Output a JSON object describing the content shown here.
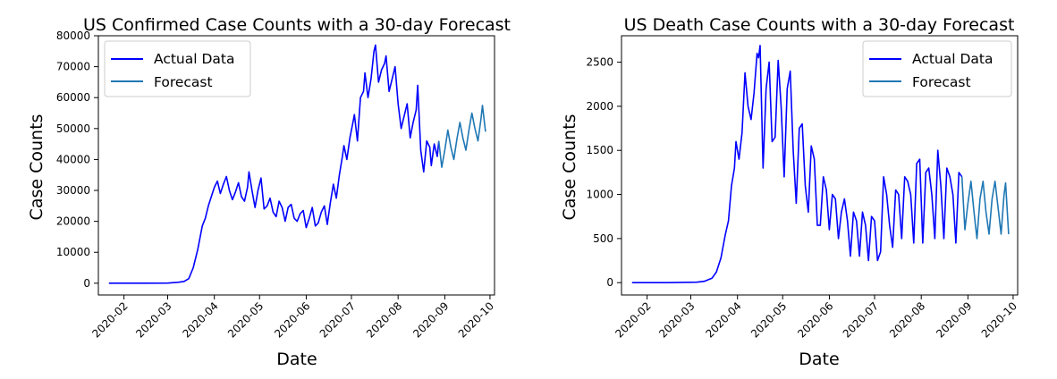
{
  "chart_data": [
    {
      "type": "line",
      "title": "US Confirmed Case Counts with a 30-day Forecast",
      "xlabel": "Date",
      "ylabel": "Case Counts",
      "xlim": [
        "2020-01-15",
        "2020-10-04"
      ],
      "ylim": [
        -3800,
        80000
      ],
      "yticks": [
        0,
        10000,
        20000,
        30000,
        40000,
        50000,
        60000,
        70000,
        80000
      ],
      "xticks": [
        "2020-02",
        "2020-03",
        "2020-04",
        "2020-05",
        "2020-06",
        "2020-07",
        "2020-08",
        "2020-09",
        "2020-10"
      ],
      "legend": {
        "placement": "upper left",
        "entries": [
          "Actual Data",
          "Forecast"
        ]
      },
      "grid": false,
      "series": [
        {
          "name": "Actual Data",
          "color": "#0000ff",
          "points": [
            [
              "2020-01-22",
              0
            ],
            [
              "2020-02-01",
              0
            ],
            [
              "2020-02-15",
              0
            ],
            [
              "2020-03-01",
              50
            ],
            [
              "2020-03-08",
              300
            ],
            [
              "2020-03-12",
              600
            ],
            [
              "2020-03-15",
              1500
            ],
            [
              "2020-03-18",
              5000
            ],
            [
              "2020-03-21",
              11000
            ],
            [
              "2020-03-24",
              18500
            ],
            [
              "2020-03-26",
              21000
            ],
            [
              "2020-03-28",
              25000
            ],
            [
              "2020-03-30",
              28000
            ],
            [
              "2020-04-01",
              31000
            ],
            [
              "2020-04-03",
              33000
            ],
            [
              "2020-04-05",
              29000
            ],
            [
              "2020-04-07",
              32000
            ],
            [
              "2020-04-09",
              34500
            ],
            [
              "2020-04-11",
              30000
            ],
            [
              "2020-04-13",
              27000
            ],
            [
              "2020-04-15",
              29500
            ],
            [
              "2020-04-17",
              32500
            ],
            [
              "2020-04-19",
              28000
            ],
            [
              "2020-04-21",
              26500
            ],
            [
              "2020-04-23",
              31000
            ],
            [
              "2020-04-24",
              36000
            ],
            [
              "2020-04-26",
              30000
            ],
            [
              "2020-04-28",
              24500
            ],
            [
              "2020-04-30",
              30000
            ],
            [
              "2020-05-02",
              34000
            ],
            [
              "2020-05-04",
              24000
            ],
            [
              "2020-05-06",
              25000
            ],
            [
              "2020-05-08",
              27500
            ],
            [
              "2020-05-10",
              23000
            ],
            [
              "2020-05-12",
              21500
            ],
            [
              "2020-05-14",
              26500
            ],
            [
              "2020-05-16",
              24500
            ],
            [
              "2020-05-18",
              20000
            ],
            [
              "2020-05-20",
              24500
            ],
            [
              "2020-05-22",
              25500
            ],
            [
              "2020-05-24",
              21000
            ],
            [
              "2020-05-26",
              20000
            ],
            [
              "2020-05-28",
              22500
            ],
            [
              "2020-05-30",
              23500
            ],
            [
              "2020-06-01",
              18000
            ],
            [
              "2020-06-03",
              21000
            ],
            [
              "2020-06-05",
              24500
            ],
            [
              "2020-06-07",
              18500
            ],
            [
              "2020-06-09",
              19500
            ],
            [
              "2020-06-11",
              23000
            ],
            [
              "2020-06-13",
              25000
            ],
            [
              "2020-06-15",
              19000
            ],
            [
              "2020-06-17",
              26000
            ],
            [
              "2020-06-19",
              32000
            ],
            [
              "2020-06-21",
              27500
            ],
            [
              "2020-06-23",
              35000
            ],
            [
              "2020-06-25",
              41000
            ],
            [
              "2020-06-26",
              44500
            ],
            [
              "2020-06-28",
              40000
            ],
            [
              "2020-06-30",
              47000
            ],
            [
              "2020-07-02",
              52000
            ],
            [
              "2020-07-03",
              54500
            ],
            [
              "2020-07-05",
              46000
            ],
            [
              "2020-07-07",
              60000
            ],
            [
              "2020-07-09",
              62000
            ],
            [
              "2020-07-10",
              68000
            ],
            [
              "2020-07-12",
              60000
            ],
            [
              "2020-07-14",
              66000
            ],
            [
              "2020-07-16",
              75000
            ],
            [
              "2020-07-17",
              77000
            ],
            [
              "2020-07-19",
              65000
            ],
            [
              "2020-07-21",
              69000
            ],
            [
              "2020-07-23",
              71000
            ],
            [
              "2020-07-24",
              73500
            ],
            [
              "2020-07-26",
              62000
            ],
            [
              "2020-07-28",
              66000
            ],
            [
              "2020-07-30",
              70000
            ],
            [
              "2020-08-01",
              58000
            ],
            [
              "2020-08-03",
              50000
            ],
            [
              "2020-08-05",
              54000
            ],
            [
              "2020-08-07",
              58000
            ],
            [
              "2020-08-09",
              47000
            ],
            [
              "2020-08-11",
              52000
            ],
            [
              "2020-08-13",
              56000
            ],
            [
              "2020-08-14",
              64000
            ],
            [
              "2020-08-16",
              43000
            ],
            [
              "2020-08-18",
              36000
            ],
            [
              "2020-08-20",
              46000
            ],
            [
              "2020-08-22",
              44000
            ],
            [
              "2020-08-23",
              38000
            ],
            [
              "2020-08-25",
              45000
            ],
            [
              "2020-08-27",
              41000
            ],
            [
              "2020-08-28",
              46000
            ]
          ]
        },
        {
          "name": "Forecast",
          "color": "#1f77b4",
          "points": [
            [
              "2020-08-28",
              46000
            ],
            [
              "2020-08-30",
              37500
            ],
            [
              "2020-09-01",
              43000
            ],
            [
              "2020-09-03",
              49500
            ],
            [
              "2020-09-05",
              44000
            ],
            [
              "2020-09-07",
              40000
            ],
            [
              "2020-09-09",
              46500
            ],
            [
              "2020-09-11",
              52000
            ],
            [
              "2020-09-13",
              47000
            ],
            [
              "2020-09-15",
              43000
            ],
            [
              "2020-09-17",
              49500
            ],
            [
              "2020-09-19",
              55000
            ],
            [
              "2020-09-21",
              50000
            ],
            [
              "2020-09-23",
              46000
            ],
            [
              "2020-09-25",
              53000
            ],
            [
              "2020-09-26",
              57500
            ],
            [
              "2020-09-28",
              49000
            ]
          ]
        }
      ]
    },
    {
      "type": "line",
      "title": "US Death Case Counts with a 30-day Forecast",
      "xlabel": "Date",
      "ylabel": "Case Counts",
      "xlim": [
        "2020-01-15",
        "2020-10-04"
      ],
      "ylim": [
        -140,
        2800
      ],
      "yticks": [
        0,
        500,
        1000,
        1500,
        2000,
        2500
      ],
      "xticks": [
        "2020-02",
        "2020-03",
        "2020-04",
        "2020-05",
        "2020-06",
        "2020-07",
        "2020-08",
        "2020-09",
        "2020-10"
      ],
      "legend": {
        "placement": "upper right",
        "entries": [
          "Actual Data",
          "Forecast"
        ]
      },
      "grid": false,
      "series": [
        {
          "name": "Actual Data",
          "color": "#0000ff",
          "points": [
            [
              "2020-01-22",
              0
            ],
            [
              "2020-02-15",
              0
            ],
            [
              "2020-03-05",
              5
            ],
            [
              "2020-03-10",
              15
            ],
            [
              "2020-03-15",
              50
            ],
            [
              "2020-03-18",
              120
            ],
            [
              "2020-03-21",
              280
            ],
            [
              "2020-03-24",
              550
            ],
            [
              "2020-03-26",
              700
            ],
            [
              "2020-03-28",
              1100
            ],
            [
              "2020-03-30",
              1300
            ],
            [
              "2020-03-31",
              1600
            ],
            [
              "2020-04-02",
              1400
            ],
            [
              "2020-04-04",
              1700
            ],
            [
              "2020-04-06",
              2380
            ],
            [
              "2020-04-08",
              2000
            ],
            [
              "2020-04-10",
              1850
            ],
            [
              "2020-04-12",
              2150
            ],
            [
              "2020-04-14",
              2600
            ],
            [
              "2020-04-15",
              2550
            ],
            [
              "2020-04-16",
              2690
            ],
            [
              "2020-04-18",
              1300
            ],
            [
              "2020-04-20",
              2200
            ],
            [
              "2020-04-22",
              2500
            ],
            [
              "2020-04-24",
              1600
            ],
            [
              "2020-04-26",
              1650
            ],
            [
              "2020-04-28",
              2520
            ],
            [
              "2020-04-30",
              2000
            ],
            [
              "2020-05-02",
              1200
            ],
            [
              "2020-05-04",
              2200
            ],
            [
              "2020-05-06",
              2400
            ],
            [
              "2020-05-08",
              1500
            ],
            [
              "2020-05-10",
              900
            ],
            [
              "2020-05-12",
              1750
            ],
            [
              "2020-05-14",
              1800
            ],
            [
              "2020-05-16",
              1100
            ],
            [
              "2020-05-18",
              800
            ],
            [
              "2020-05-20",
              1550
            ],
            [
              "2020-05-22",
              1400
            ],
            [
              "2020-05-24",
              650
            ],
            [
              "2020-05-26",
              650
            ],
            [
              "2020-05-28",
              1200
            ],
            [
              "2020-05-30",
              1050
            ],
            [
              "2020-06-01",
              600
            ],
            [
              "2020-06-03",
              1000
            ],
            [
              "2020-06-05",
              950
            ],
            [
              "2020-06-07",
              500
            ],
            [
              "2020-06-09",
              800
            ],
            [
              "2020-06-11",
              950
            ],
            [
              "2020-06-13",
              700
            ],
            [
              "2020-06-15",
              300
            ],
            [
              "2020-06-17",
              800
            ],
            [
              "2020-06-19",
              700
            ],
            [
              "2020-06-21",
              300
            ],
            [
              "2020-06-23",
              800
            ],
            [
              "2020-06-25",
              650
            ],
            [
              "2020-06-27",
              250
            ],
            [
              "2020-06-29",
              750
            ],
            [
              "2020-07-01",
              700
            ],
            [
              "2020-07-03",
              250
            ],
            [
              "2020-07-05",
              350
            ],
            [
              "2020-07-07",
              1200
            ],
            [
              "2020-07-09",
              1000
            ],
            [
              "2020-07-11",
              650
            ],
            [
              "2020-07-13",
              400
            ],
            [
              "2020-07-15",
              1050
            ],
            [
              "2020-07-17",
              1000
            ],
            [
              "2020-07-19",
              500
            ],
            [
              "2020-07-21",
              1200
            ],
            [
              "2020-07-23",
              1150
            ],
            [
              "2020-07-25",
              1000
            ],
            [
              "2020-07-27",
              450
            ],
            [
              "2020-07-29",
              1350
            ],
            [
              "2020-07-31",
              1400
            ],
            [
              "2020-08-02",
              450
            ],
            [
              "2020-08-04",
              1250
            ],
            [
              "2020-08-06",
              1300
            ],
            [
              "2020-08-08",
              1000
            ],
            [
              "2020-08-10",
              500
            ],
            [
              "2020-08-12",
              1500
            ],
            [
              "2020-08-14",
              1100
            ],
            [
              "2020-08-16",
              500
            ],
            [
              "2020-08-18",
              1300
            ],
            [
              "2020-08-20",
              1200
            ],
            [
              "2020-08-22",
              1000
            ],
            [
              "2020-08-24",
              450
            ],
            [
              "2020-08-26",
              1250
            ],
            [
              "2020-08-28",
              1200
            ]
          ]
        },
        {
          "name": "Forecast",
          "color": "#1f77b4",
          "points": [
            [
              "2020-08-28",
              1200
            ],
            [
              "2020-08-30",
              600
            ],
            [
              "2020-09-01",
              900
            ],
            [
              "2020-09-03",
              1150
            ],
            [
              "2020-09-05",
              800
            ],
            [
              "2020-09-07",
              500
            ],
            [
              "2020-09-09",
              950
            ],
            [
              "2020-09-11",
              1150
            ],
            [
              "2020-09-13",
              800
            ],
            [
              "2020-09-15",
              550
            ],
            [
              "2020-09-17",
              950
            ],
            [
              "2020-09-19",
              1150
            ],
            [
              "2020-09-21",
              850
            ],
            [
              "2020-09-23",
              550
            ],
            [
              "2020-09-25",
              1000
            ],
            [
              "2020-09-26",
              1130
            ],
            [
              "2020-09-28",
              550
            ]
          ]
        }
      ]
    }
  ]
}
